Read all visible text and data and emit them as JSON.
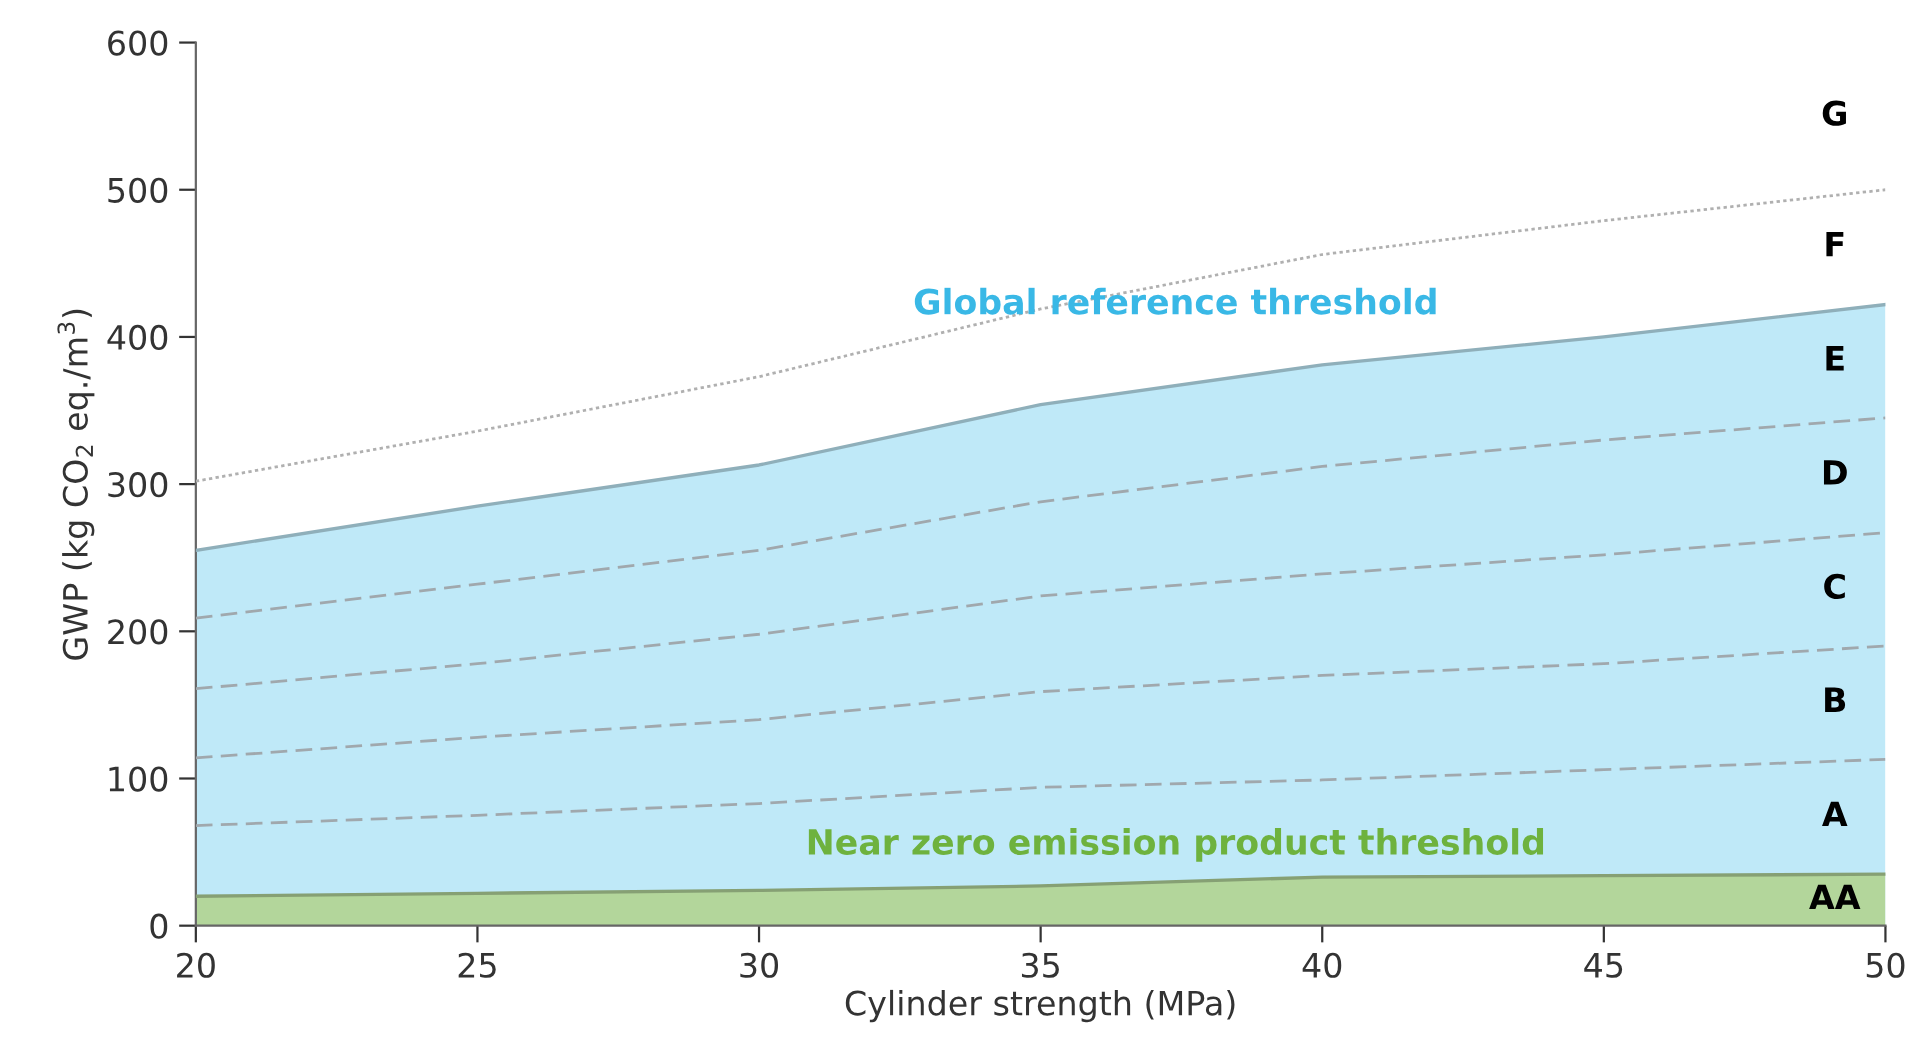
{
  "chart_data": {
    "type": "line",
    "xlabel": "Cylinder strength (MPa)",
    "ylabel": "GWP (kg CO$_{2}$ eq./m$^{3}$)",
    "x": [
      20,
      25,
      30,
      35,
      40,
      45,
      50
    ],
    "series": [
      {
        "name": "Global reference threshold",
        "type": "area",
        "color": "#bfe9f8",
        "values": [
          255,
          285,
          313,
          354,
          381,
          400,
          422
        ]
      },
      {
        "name": "Near zero emission product threshold",
        "type": "area",
        "color": "#b3d69b",
        "values": [
          20,
          22,
          24,
          27,
          33,
          34,
          35
        ]
      },
      {
        "line_style": "dotted",
        "color": "#b0b0b0",
        "values": [
          302,
          336,
          373,
          419,
          456,
          479,
          500
        ]
      },
      {
        "line_style": "dashed",
        "color": "#a0a8ad",
        "values": [
          209,
          232,
          255,
          288,
          312,
          330,
          345
        ]
      },
      {
        "line_style": "dashed",
        "color": "#a0a8ad",
        "values": [
          161,
          178,
          198,
          224,
          239,
          252,
          267
        ]
      },
      {
        "line_style": "dashed",
        "color": "#a0a8ad",
        "values": [
          114,
          128,
          140,
          159,
          170,
          178,
          190
        ]
      },
      {
        "line_style": "dashed",
        "color": "#a0a8ad",
        "values": [
          68,
          75,
          83,
          94,
          99,
          106,
          113
        ]
      }
    ],
    "annotations": [
      "G",
      "F",
      "E",
      "D",
      "C",
      "B",
      "A",
      "AA"
    ],
    "xlim": [
      20,
      50
    ],
    "ylim": [
      0,
      600
    ],
    "xticks": [
      20,
      25,
      30,
      35,
      40,
      45,
      50
    ],
    "yticks": [
      0,
      100,
      200,
      300,
      400,
      500,
      600
    ],
    "grid": false,
    "legend": false
  }
}
